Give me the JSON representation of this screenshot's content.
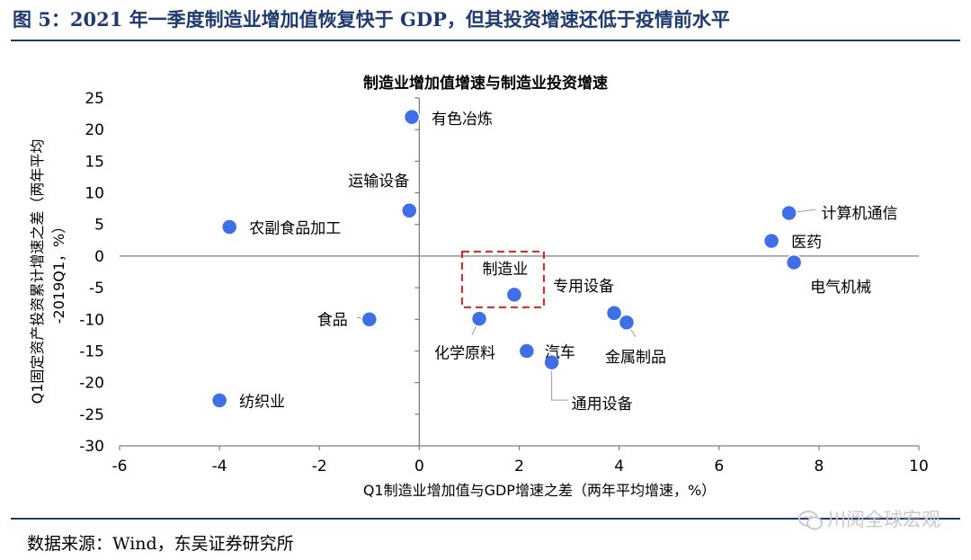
{
  "figure_title": "图 5：2021 年一季度制造业增加值恢复快于 GDP，但其投资增速还低于疫情前水平",
  "source_text": "数据来源：Wind，东吴证券研究所",
  "watermark": {
    "text": "川阅全球宏观",
    "icon": "wechat-icon"
  },
  "colors": {
    "title": "#1f3a6e",
    "point": "#3f6fe6",
    "highlight": "#e02020",
    "axis": "#7f7f7f"
  },
  "chart_data": {
    "type": "scatter",
    "title": "制造业增加值增速与制造业投资增速",
    "xlabel": "Q1制造业增加值与GDP增速之差（两年平均增速，%）",
    "ylabel": "Q1固定资产投资累计增速之差（两年平均 -2019Q1，%）",
    "ylabel_lines": [
      "Q1固定资产投资累计增速之差（两年平均",
      "-2019Q1，%）"
    ],
    "xlim": [
      -6,
      10
    ],
    "ylim": [
      -30,
      25
    ],
    "xticks": [
      -6,
      -4,
      -2,
      0,
      2,
      4,
      6,
      8,
      10
    ],
    "yticks": [
      25,
      20,
      15,
      10,
      5,
      0,
      -5,
      -10,
      -15,
      -20,
      -25,
      -30
    ],
    "grid": false,
    "points": [
      {
        "label": "有色冶炼",
        "x": -0.15,
        "y": 22.0
      },
      {
        "label": "运输设备",
        "x": -0.2,
        "y": 7.2
      },
      {
        "label": "农副食品加工",
        "x": -3.8,
        "y": 4.6
      },
      {
        "label": "计算机通信",
        "x": 7.4,
        "y": 6.8
      },
      {
        "label": "医药",
        "x": 7.05,
        "y": 2.4
      },
      {
        "label": "电气机械",
        "x": 7.5,
        "y": -1.0
      },
      {
        "label": "制造业",
        "x": 1.9,
        "y": -6.1,
        "highlight": true
      },
      {
        "label": "专用设备",
        "x": 3.9,
        "y": -9.0
      },
      {
        "label": "金属制品",
        "x": 4.15,
        "y": -10.5
      },
      {
        "label": "食品",
        "x": -1.0,
        "y": -10.0
      },
      {
        "label": "化学原料",
        "x": 1.2,
        "y": -9.9
      },
      {
        "label": "汽车",
        "x": 2.15,
        "y": -15.0
      },
      {
        "label": "通用设备",
        "x": 2.65,
        "y": -16.8
      },
      {
        "label": "纺织业",
        "x": -4.0,
        "y": -22.8
      }
    ]
  }
}
